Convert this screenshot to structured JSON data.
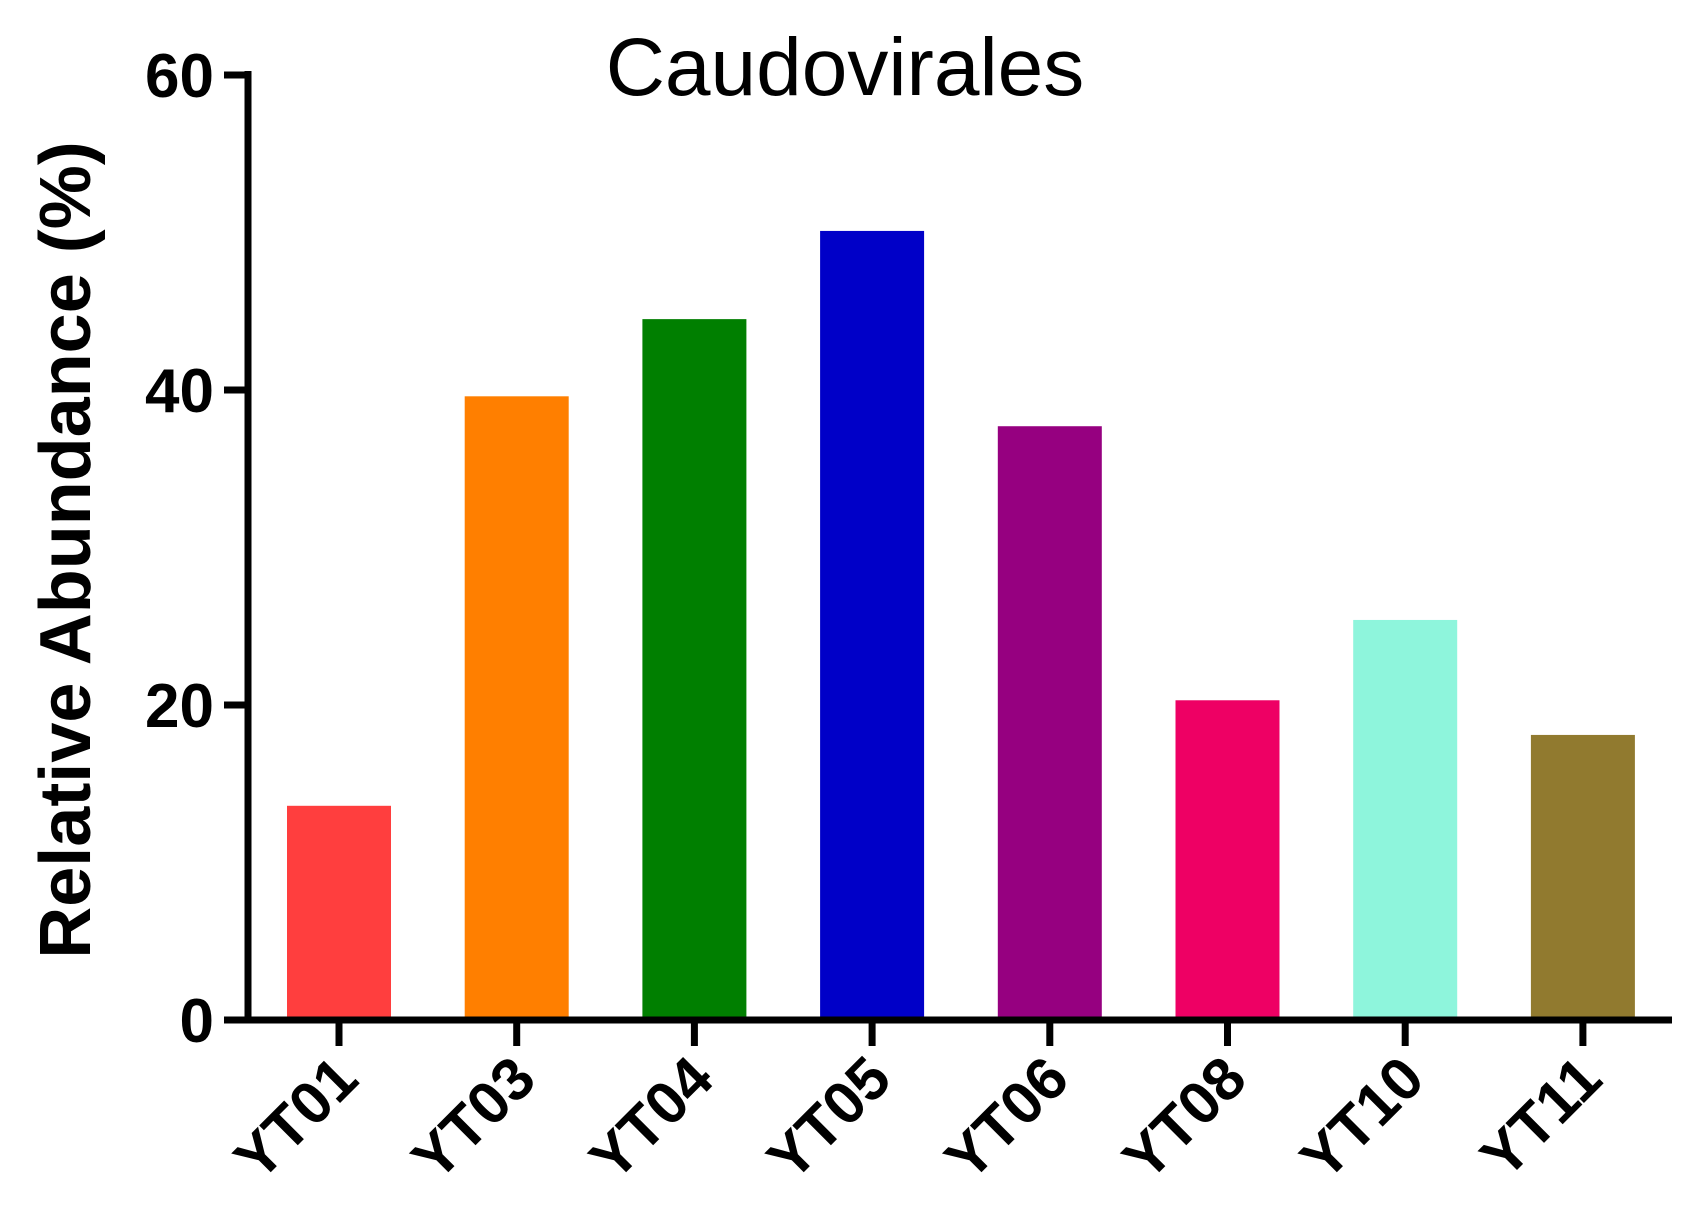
{
  "chart_data": {
    "type": "bar",
    "title": "Caudovirales",
    "xlabel": "",
    "ylabel": "Relative Abundance (%)",
    "ylim": [
      0,
      60
    ],
    "yticks": [
      "0",
      "20",
      "40",
      "60"
    ],
    "grid": false,
    "legend": "none",
    "categories": [
      "YT01",
      "YT03",
      "YT04",
      "YT05",
      "YT06",
      "YT08",
      "YT10",
      "YT11"
    ],
    "values": [
      13.6,
      39.6,
      44.5,
      50.1,
      37.7,
      20.3,
      25.4,
      18.1
    ],
    "colors": [
      "#ff3e3e",
      "#ff7f00",
      "#007f00",
      "#0000c8",
      "#960080",
      "#ee0064",
      "#8ef5dc",
      "#917a2f"
    ]
  }
}
